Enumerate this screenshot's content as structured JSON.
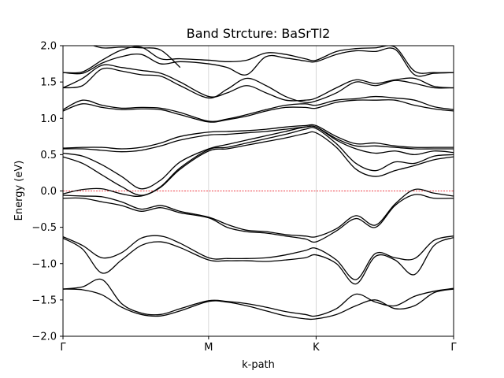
{
  "chart_data": {
    "type": "line",
    "title": "Band Strcture: BaSrTl2",
    "xlabel": "k-path",
    "ylabel": "Energy (eV)",
    "ylim": [
      -2.0,
      2.0
    ],
    "xlim": [
      0,
      1
    ],
    "yticks": [
      -2.0,
      -1.5,
      -1.0,
      -0.5,
      0.0,
      0.5,
      1.0,
      1.5,
      2.0
    ],
    "ytick_labels": [
      "−2.0",
      "−1.5",
      "−1.0",
      "−0.5",
      "0.0",
      "0.5",
      "1.0",
      "1.5",
      "2.0"
    ],
    "kpoints": [
      {
        "label": "Γ",
        "x": 0.0
      },
      {
        "label": "M",
        "x": 0.3727
      },
      {
        "label": "K",
        "x": 0.648
      },
      {
        "label": "Γ",
        "x": 1.0
      }
    ],
    "fermi_level": 0.0,
    "fermi_color": "#e8000b",
    "band_color": "#000000",
    "vline_color": "#cccccc",
    "series": [
      {
        "x": [
          0.0,
          0.05,
          0.1,
          0.15,
          0.2,
          0.25,
          0.3,
          0.373,
          0.42,
          0.47,
          0.52,
          0.57,
          0.62,
          0.648,
          0.7,
          0.75,
          0.8,
          0.85,
          0.9,
          0.95,
          1.0
        ],
        "values": [
          -1.35,
          -1.36,
          -1.43,
          -1.6,
          -1.7,
          -1.72,
          -1.65,
          -1.52,
          -1.53,
          -1.58,
          -1.65,
          -1.72,
          -1.76,
          -1.76,
          -1.7,
          -1.58,
          -1.5,
          -1.62,
          -1.58,
          -1.4,
          -1.35
        ]
      },
      {
        "x": [
          0.0,
          0.05,
          0.1,
          0.15,
          0.2,
          0.25,
          0.3,
          0.373,
          0.42,
          0.47,
          0.52,
          0.57,
          0.62,
          0.648,
          0.7,
          0.75,
          0.8,
          0.85,
          0.9,
          0.95,
          1.0
        ],
        "values": [
          -1.35,
          -1.32,
          -1.22,
          -1.55,
          -1.68,
          -1.7,
          -1.62,
          -1.51,
          -1.52,
          -1.55,
          -1.6,
          -1.66,
          -1.7,
          -1.72,
          -1.62,
          -1.42,
          -1.53,
          -1.58,
          -1.45,
          -1.38,
          -1.34
        ]
      },
      {
        "x": [
          0.0,
          0.05,
          0.1,
          0.15,
          0.2,
          0.25,
          0.3,
          0.373,
          0.42,
          0.47,
          0.52,
          0.57,
          0.62,
          0.648,
          0.7,
          0.75,
          0.8,
          0.85,
          0.9,
          0.95,
          1.0
        ],
        "values": [
          -0.65,
          -0.8,
          -1.13,
          -0.95,
          -0.75,
          -0.7,
          -0.78,
          -0.95,
          -0.96,
          -0.96,
          -0.97,
          -0.95,
          -0.92,
          -0.88,
          -1.0,
          -1.28,
          -0.9,
          -0.95,
          -1.15,
          -0.75,
          -0.64
        ]
      },
      {
        "x": [
          0.0,
          0.05,
          0.1,
          0.15,
          0.2,
          0.25,
          0.3,
          0.373,
          0.42,
          0.47,
          0.52,
          0.57,
          0.62,
          0.648,
          0.7,
          0.75,
          0.8,
          0.85,
          0.9,
          0.95,
          1.0
        ],
        "values": [
          -0.63,
          -0.75,
          -0.92,
          -0.85,
          -0.65,
          -0.62,
          -0.72,
          -0.92,
          -0.93,
          -0.93,
          -0.92,
          -0.88,
          -0.82,
          -0.79,
          -0.95,
          -1.22,
          -0.86,
          -0.92,
          -0.93,
          -0.68,
          -0.62
        ]
      },
      {
        "x": [
          0.0,
          0.05,
          0.1,
          0.15,
          0.2,
          0.25,
          0.3,
          0.373,
          0.42,
          0.47,
          0.52,
          0.57,
          0.62,
          0.648,
          0.7,
          0.75,
          0.8,
          0.85,
          0.9,
          0.95,
          1.0
        ],
        "values": [
          -0.1,
          -0.1,
          -0.15,
          -0.2,
          -0.28,
          -0.23,
          -0.3,
          -0.37,
          -0.5,
          -0.56,
          -0.58,
          -0.62,
          -0.66,
          -0.7,
          -0.55,
          -0.38,
          -0.5,
          -0.2,
          -0.05,
          -0.1,
          -0.1
        ]
      },
      {
        "x": [
          0.0,
          0.05,
          0.1,
          0.15,
          0.2,
          0.25,
          0.3,
          0.373,
          0.42,
          0.47,
          0.52,
          0.57,
          0.62,
          0.648,
          0.7,
          0.75,
          0.8,
          0.85,
          0.9,
          0.95,
          1.0
        ],
        "values": [
          -0.06,
          -0.07,
          -0.08,
          -0.15,
          -0.25,
          -0.2,
          -0.28,
          -0.36,
          -0.46,
          -0.54,
          -0.56,
          -0.6,
          -0.62,
          -0.63,
          -0.52,
          -0.34,
          -0.47,
          -0.18,
          0.02,
          -0.03,
          -0.07
        ]
      },
      {
        "x": [
          0.0,
          0.05,
          0.1,
          0.15,
          0.2,
          0.25,
          0.3,
          0.373,
          0.42,
          0.47,
          0.52,
          0.57,
          0.62,
          0.648,
          0.7,
          0.75,
          0.8,
          0.85,
          0.9,
          0.95,
          1.0
        ],
        "values": [
          -0.04,
          0.02,
          0.03,
          -0.04,
          -0.07,
          0.05,
          0.3,
          0.55,
          0.58,
          0.63,
          0.68,
          0.73,
          0.79,
          0.8,
          0.6,
          0.3,
          0.2,
          0.28,
          0.35,
          0.43,
          0.47
        ]
      },
      {
        "x": [
          0.0,
          0.05,
          0.1,
          0.15,
          0.2,
          0.25,
          0.3,
          0.373,
          0.42,
          0.47,
          0.52,
          0.57,
          0.62,
          0.648,
          0.7,
          0.75,
          0.8,
          0.85,
          0.9,
          0.95,
          1.0
        ],
        "values": [
          0.47,
          0.38,
          0.22,
          0.06,
          -0.06,
          0.06,
          0.32,
          0.57,
          0.6,
          0.66,
          0.72,
          0.78,
          0.85,
          0.86,
          0.65,
          0.38,
          0.28,
          0.4,
          0.38,
          0.48,
          0.5
        ]
      },
      {
        "x": [
          0.0,
          0.05,
          0.1,
          0.15,
          0.2,
          0.25,
          0.3,
          0.373,
          0.42,
          0.47,
          0.52,
          0.57,
          0.62,
          0.648,
          0.7,
          0.75,
          0.8,
          0.85,
          0.9,
          0.95,
          1.0
        ],
        "values": [
          0.52,
          0.48,
          0.36,
          0.2,
          0.03,
          0.15,
          0.4,
          0.58,
          0.64,
          0.7,
          0.76,
          0.82,
          0.88,
          0.88,
          0.7,
          0.58,
          0.52,
          0.55,
          0.5,
          0.55,
          0.53
        ]
      },
      {
        "x": [
          0.0,
          0.05,
          0.1,
          0.15,
          0.2,
          0.25,
          0.3,
          0.373,
          0.42,
          0.47,
          0.52,
          0.57,
          0.62,
          0.648,
          0.7,
          0.75,
          0.8,
          0.85,
          0.9,
          0.95,
          1.0
        ],
        "values": [
          0.58,
          0.58,
          0.56,
          0.54,
          0.56,
          0.62,
          0.7,
          0.77,
          0.78,
          0.8,
          0.82,
          0.85,
          0.88,
          0.88,
          0.72,
          0.62,
          0.62,
          0.6,
          0.58,
          0.58,
          0.58
        ]
      },
      {
        "x": [
          0.0,
          0.05,
          0.1,
          0.15,
          0.2,
          0.25,
          0.3,
          0.373,
          0.42,
          0.47,
          0.52,
          0.57,
          0.62,
          0.648,
          0.7,
          0.75,
          0.8,
          0.85,
          0.9,
          0.95,
          1.0
        ],
        "values": [
          0.59,
          0.6,
          0.6,
          0.58,
          0.6,
          0.66,
          0.75,
          0.81,
          0.82,
          0.83,
          0.85,
          0.88,
          0.9,
          0.9,
          0.75,
          0.65,
          0.66,
          0.62,
          0.6,
          0.6,
          0.6
        ]
      },
      {
        "x": [
          0.0,
          0.05,
          0.1,
          0.15,
          0.2,
          0.25,
          0.3,
          0.373,
          0.42,
          0.47,
          0.52,
          0.57,
          0.62,
          0.648,
          0.7,
          0.75,
          0.8,
          0.85,
          0.9,
          0.95,
          1.0
        ],
        "values": [
          1.1,
          1.2,
          1.15,
          1.12,
          1.13,
          1.12,
          1.05,
          0.95,
          0.98,
          1.03,
          1.1,
          1.15,
          1.15,
          1.14,
          1.22,
          1.25,
          1.25,
          1.25,
          1.18,
          1.13,
          1.1
        ]
      },
      {
        "x": [
          0.0,
          0.05,
          0.1,
          0.15,
          0.2,
          0.25,
          0.3,
          0.373,
          0.42,
          0.47,
          0.52,
          0.57,
          0.62,
          0.648,
          0.7,
          0.75,
          0.8,
          0.85,
          0.9,
          0.95,
          1.0
        ],
        "values": [
          1.12,
          1.25,
          1.18,
          1.14,
          1.15,
          1.14,
          1.08,
          0.96,
          0.99,
          1.05,
          1.12,
          1.18,
          1.2,
          1.18,
          1.25,
          1.27,
          1.3,
          1.28,
          1.25,
          1.16,
          1.12
        ]
      },
      {
        "x": [
          0.0,
          0.05,
          0.1,
          0.15,
          0.2,
          0.25,
          0.3,
          0.373,
          0.42,
          0.47,
          0.52,
          0.57,
          0.62,
          0.648,
          0.7,
          0.75,
          0.8,
          0.85,
          0.9,
          0.95,
          1.0
        ],
        "values": [
          1.42,
          1.45,
          1.68,
          1.65,
          1.6,
          1.58,
          1.45,
          1.28,
          1.4,
          1.55,
          1.45,
          1.3,
          1.22,
          1.24,
          1.35,
          1.5,
          1.45,
          1.52,
          1.48,
          1.42,
          1.42
        ]
      },
      {
        "x": [
          0.0,
          0.05,
          0.1,
          0.15,
          0.2,
          0.25,
          0.3,
          0.373,
          0.42,
          0.47,
          0.52,
          0.57,
          0.62,
          0.648,
          0.7,
          0.75,
          0.8,
          0.85,
          0.9,
          0.95,
          1.0
        ],
        "values": [
          1.42,
          1.55,
          1.73,
          1.7,
          1.66,
          1.62,
          1.5,
          1.3,
          1.35,
          1.45,
          1.35,
          1.25,
          1.25,
          1.28,
          1.42,
          1.53,
          1.48,
          1.53,
          1.55,
          1.44,
          1.42
        ]
      },
      {
        "x": [
          0.0,
          0.05,
          0.1,
          0.15,
          0.2,
          0.25,
          0.3,
          0.373,
          0.42,
          0.47,
          0.52,
          0.57,
          0.62,
          0.648,
          0.7,
          0.75,
          0.8,
          0.85,
          0.9,
          0.95,
          1.0
        ],
        "values": [
          1.63,
          1.62,
          1.76,
          1.85,
          1.88,
          1.75,
          1.78,
          1.75,
          1.7,
          1.6,
          1.85,
          1.83,
          1.79,
          1.78,
          1.88,
          1.93,
          1.92,
          1.95,
          1.6,
          1.62,
          1.63
        ]
      },
      {
        "x": [
          0.0,
          0.05,
          0.1,
          0.15,
          0.2,
          0.25,
          0.3,
          0.373,
          0.42,
          0.47,
          0.52,
          0.57,
          0.62,
          0.648,
          0.7,
          0.75,
          0.8,
          0.85,
          0.9,
          0.95,
          1.0
        ],
        "values": [
          1.63,
          1.64,
          1.8,
          1.94,
          1.98,
          1.82,
          1.82,
          1.8,
          1.78,
          1.8,
          1.9,
          1.88,
          1.82,
          1.8,
          1.92,
          1.96,
          1.97,
          1.98,
          1.65,
          1.63,
          1.63
        ]
      },
      {
        "x": [
          0.0,
          0.05,
          0.1,
          0.15,
          0.2,
          0.25,
          0.3
        ],
        "values": [
          2.02,
          2.04,
          1.97,
          1.98,
          1.97,
          1.94,
          1.7
        ]
      }
    ]
  }
}
